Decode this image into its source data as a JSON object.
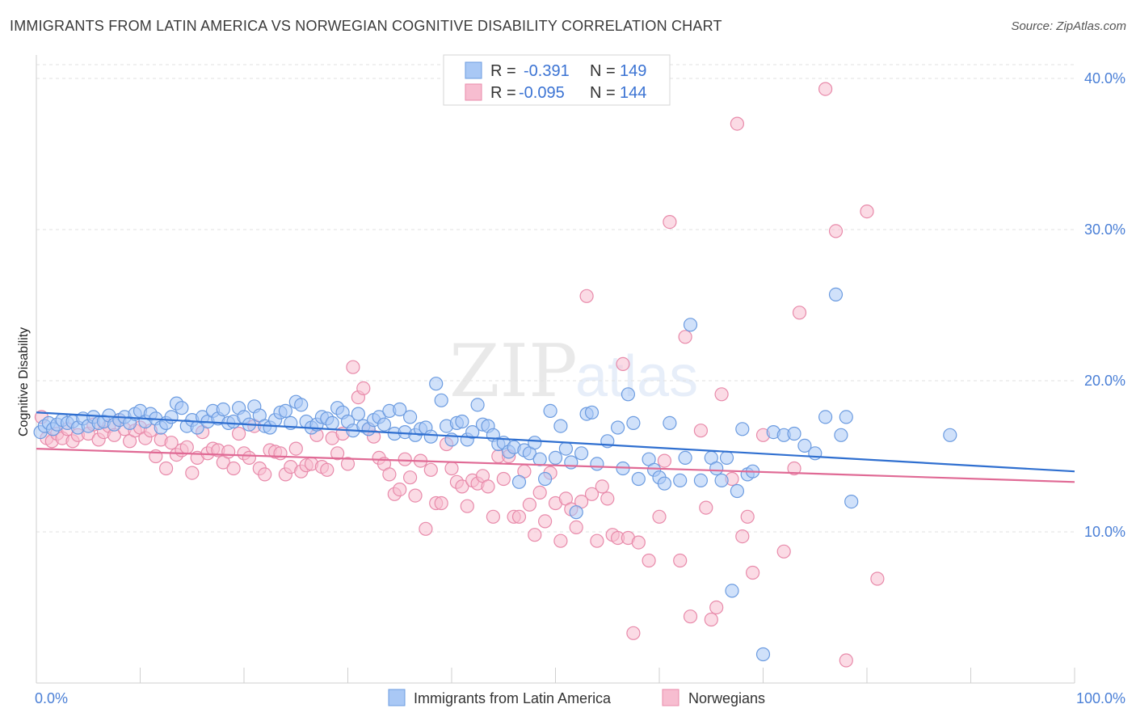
{
  "header": {
    "title": "IMMIGRANTS FROM LATIN AMERICA VS NORWEGIAN COGNITIVE DISABILITY CORRELATION CHART",
    "source": "Source: ZipAtlas.com"
  },
  "watermark": {
    "zip": "ZIP",
    "atlas": "atlas"
  },
  "legend": {
    "rows": [
      {
        "r_label": "R =",
        "r_value": "-0.391",
        "n_label": "N =",
        "n_value": "149"
      },
      {
        "r_label": "R =",
        "r_value": "-0.095",
        "n_label": "N =",
        "n_value": "144"
      }
    ]
  },
  "bottom_legend": {
    "series1": "Immigrants from Latin America",
    "series2": "Norwegians"
  },
  "colors": {
    "blue_fill": "#a9c8f5",
    "blue_stroke": "#6b9be0",
    "blue_line": "#2f6fd0",
    "pink_fill": "#f7bdd0",
    "pink_stroke": "#e88aaa",
    "pink_line": "#e06a95",
    "tick_text": "#4a7fd6",
    "grid": "#e2e2e2"
  },
  "chart_data": {
    "type": "scatter",
    "title": "IMMIGRANTS FROM LATIN AMERICA VS NORWEGIAN COGNITIVE DISABILITY CORRELATION CHART",
    "xlabel": "",
    "ylabel": "Cognitive Disability",
    "xlim": [
      0,
      100
    ],
    "ylim": [
      0,
      40
    ],
    "x_tick_labels": [
      "0.0%",
      "100.0%"
    ],
    "y_ticks": [
      10,
      20,
      30,
      40
    ],
    "y_tick_labels": [
      "10.0%",
      "20.0%",
      "30.0%",
      "40.0%"
    ],
    "grid": true,
    "legend_position": "top-center",
    "series": [
      {
        "name": "Immigrants from Latin America",
        "r": -0.391,
        "n": 149,
        "trend": [
          [
            0,
            17.9
          ],
          [
            100,
            14.0
          ]
        ],
        "points": [
          [
            0.4,
            16.6
          ],
          [
            0.8,
            17.0
          ],
          [
            1.2,
            17.2
          ],
          [
            1.6,
            16.8
          ],
          [
            2.0,
            17.1
          ],
          [
            2.5,
            17.4
          ],
          [
            3.0,
            17.2
          ],
          [
            3.5,
            17.3
          ],
          [
            4.0,
            16.9
          ],
          [
            4.5,
            17.5
          ],
          [
            5.0,
            17.0
          ],
          [
            5.5,
            17.6
          ],
          [
            6.0,
            17.2
          ],
          [
            6.5,
            17.3
          ],
          [
            7.0,
            17.7
          ],
          [
            7.5,
            17.1
          ],
          [
            8.0,
            17.4
          ],
          [
            8.5,
            17.6
          ],
          [
            9.0,
            17.2
          ],
          [
            9.5,
            17.8
          ],
          [
            10.0,
            18.0
          ],
          [
            10.5,
            17.3
          ],
          [
            11.0,
            17.8
          ],
          [
            11.5,
            17.5
          ],
          [
            12.0,
            16.9
          ],
          [
            12.5,
            17.2
          ],
          [
            13.0,
            17.6
          ],
          [
            13.5,
            18.5
          ],
          [
            14.0,
            18.2
          ],
          [
            14.5,
            17.0
          ],
          [
            15.0,
            17.4
          ],
          [
            15.5,
            16.9
          ],
          [
            16.0,
            17.6
          ],
          [
            16.5,
            17.3
          ],
          [
            17.0,
            18.0
          ],
          [
            17.5,
            17.5
          ],
          [
            18.0,
            18.1
          ],
          [
            18.5,
            17.2
          ],
          [
            19.0,
            17.3
          ],
          [
            19.5,
            18.2
          ],
          [
            20.0,
            17.6
          ],
          [
            20.5,
            17.1
          ],
          [
            21.0,
            18.3
          ],
          [
            21.5,
            17.7
          ],
          [
            22.0,
            17.0
          ],
          [
            22.5,
            16.9
          ],
          [
            23.0,
            17.4
          ],
          [
            23.5,
            17.9
          ],
          [
            24.0,
            18.0
          ],
          [
            24.5,
            17.2
          ],
          [
            25.0,
            18.6
          ],
          [
            25.5,
            18.4
          ],
          [
            26.0,
            17.3
          ],
          [
            26.5,
            16.9
          ],
          [
            27.0,
            17.1
          ],
          [
            27.5,
            17.6
          ],
          [
            28.0,
            17.5
          ],
          [
            28.5,
            17.2
          ],
          [
            29.0,
            18.2
          ],
          [
            29.5,
            17.9
          ],
          [
            30.0,
            17.3
          ],
          [
            30.5,
            16.7
          ],
          [
            31.0,
            17.8
          ],
          [
            31.5,
            17.0
          ],
          [
            32.0,
            16.8
          ],
          [
            32.5,
            17.4
          ],
          [
            33.0,
            17.6
          ],
          [
            33.5,
            17.1
          ],
          [
            34.0,
            18.0
          ],
          [
            34.5,
            16.5
          ],
          [
            35.0,
            18.1
          ],
          [
            35.5,
            16.6
          ],
          [
            36.0,
            17.6
          ],
          [
            36.5,
            16.4
          ],
          [
            37.0,
            16.8
          ],
          [
            37.5,
            16.9
          ],
          [
            38.0,
            16.3
          ],
          [
            38.5,
            19.8
          ],
          [
            39.0,
            18.7
          ],
          [
            39.5,
            17.0
          ],
          [
            40.0,
            16.1
          ],
          [
            40.5,
            17.2
          ],
          [
            41.0,
            17.3
          ],
          [
            41.5,
            16.1
          ],
          [
            42.0,
            16.6
          ],
          [
            42.5,
            18.4
          ],
          [
            43.0,
            17.1
          ],
          [
            43.5,
            17.0
          ],
          [
            44.0,
            16.4
          ],
          [
            44.5,
            15.8
          ],
          [
            45.0,
            15.9
          ],
          [
            45.5,
            15.3
          ],
          [
            46.0,
            15.6
          ],
          [
            46.5,
            13.3
          ],
          [
            47.0,
            15.4
          ],
          [
            47.5,
            15.2
          ],
          [
            48.0,
            15.9
          ],
          [
            48.5,
            14.8
          ],
          [
            49.0,
            13.5
          ],
          [
            49.5,
            18.0
          ],
          [
            50.0,
            14.9
          ],
          [
            50.5,
            17.0
          ],
          [
            51.0,
            15.5
          ],
          [
            51.5,
            14.6
          ],
          [
            52.0,
            11.3
          ],
          [
            52.5,
            15.2
          ],
          [
            53.0,
            17.8
          ],
          [
            53.5,
            17.9
          ],
          [
            54.0,
            14.5
          ],
          [
            55.0,
            16.0
          ],
          [
            56.0,
            16.9
          ],
          [
            56.5,
            14.2
          ],
          [
            57.0,
            19.1
          ],
          [
            57.5,
            17.2
          ],
          [
            58.0,
            13.5
          ],
          [
            59.0,
            14.8
          ],
          [
            59.5,
            14.1
          ],
          [
            60.0,
            13.6
          ],
          [
            60.5,
            13.2
          ],
          [
            61.0,
            17.2
          ],
          [
            62.0,
            13.4
          ],
          [
            62.5,
            14.9
          ],
          [
            63.0,
            23.7
          ],
          [
            64.0,
            13.4
          ],
          [
            65.0,
            14.9
          ],
          [
            65.5,
            14.2
          ],
          [
            66.0,
            13.4
          ],
          [
            66.5,
            14.9
          ],
          [
            67.0,
            6.1
          ],
          [
            67.5,
            12.7
          ],
          [
            68.0,
            16.8
          ],
          [
            68.5,
            13.8
          ],
          [
            69.0,
            14.0
          ],
          [
            70.0,
            1.9
          ],
          [
            71.0,
            16.6
          ],
          [
            72.0,
            16.4
          ],
          [
            73.0,
            16.5
          ],
          [
            74.0,
            15.7
          ],
          [
            75.0,
            15.2
          ],
          [
            76.0,
            17.6
          ],
          [
            77.0,
            25.7
          ],
          [
            77.5,
            16.4
          ],
          [
            78.0,
            17.6
          ],
          [
            78.5,
            12.0
          ],
          [
            88.0,
            16.4
          ]
        ]
      },
      {
        "name": "Norwegians",
        "r": -0.095,
        "n": 144,
        "trend": [
          [
            0,
            15.5
          ],
          [
            100,
            13.3
          ]
        ],
        "points": [
          [
            0.5,
            17.6
          ],
          [
            1.0,
            16.2
          ],
          [
            1.5,
            16.0
          ],
          [
            2.0,
            16.5
          ],
          [
            2.5,
            16.2
          ],
          [
            3.0,
            16.8
          ],
          [
            3.5,
            16.0
          ],
          [
            4.0,
            16.4
          ],
          [
            5.0,
            16.5
          ],
          [
            5.5,
            17.1
          ],
          [
            6.0,
            16.1
          ],
          [
            6.5,
            16.6
          ],
          [
            7.0,
            17.0
          ],
          [
            7.5,
            16.4
          ],
          [
            8.0,
            17.4
          ],
          [
            8.5,
            16.8
          ],
          [
            9.0,
            16.0
          ],
          [
            9.5,
            16.7
          ],
          [
            10.0,
            16.9
          ],
          [
            10.5,
            16.2
          ],
          [
            11.0,
            16.7
          ],
          [
            11.5,
            15.0
          ],
          [
            12.0,
            16.1
          ],
          [
            12.5,
            14.2
          ],
          [
            13.0,
            15.9
          ],
          [
            13.5,
            15.1
          ],
          [
            14.0,
            15.4
          ],
          [
            14.5,
            15.6
          ],
          [
            15.0,
            13.9
          ],
          [
            15.5,
            14.9
          ],
          [
            16.0,
            16.6
          ],
          [
            16.5,
            15.2
          ],
          [
            17.0,
            15.5
          ],
          [
            17.5,
            15.4
          ],
          [
            18.0,
            14.6
          ],
          [
            18.5,
            15.3
          ],
          [
            19.0,
            14.2
          ],
          [
            19.5,
            16.5
          ],
          [
            20.0,
            15.2
          ],
          [
            20.5,
            14.9
          ],
          [
            21.0,
            17.0
          ],
          [
            21.5,
            14.2
          ],
          [
            22.0,
            13.8
          ],
          [
            22.5,
            15.4
          ],
          [
            23.0,
            15.3
          ],
          [
            23.5,
            15.2
          ],
          [
            24.0,
            13.8
          ],
          [
            24.5,
            14.3
          ],
          [
            25.0,
            15.5
          ],
          [
            25.5,
            14.0
          ],
          [
            26.0,
            14.4
          ],
          [
            26.5,
            14.5
          ],
          [
            27.0,
            16.4
          ],
          [
            27.5,
            14.3
          ],
          [
            28.0,
            14.1
          ],
          [
            28.5,
            16.2
          ],
          [
            29.0,
            15.2
          ],
          [
            29.5,
            16.5
          ],
          [
            30.0,
            14.5
          ],
          [
            30.5,
            20.9
          ],
          [
            31.0,
            18.9
          ],
          [
            31.5,
            19.5
          ],
          [
            32.0,
            16.8
          ],
          [
            32.5,
            16.3
          ],
          [
            33.0,
            14.9
          ],
          [
            33.5,
            14.5
          ],
          [
            34.0,
            13.8
          ],
          [
            34.5,
            12.5
          ],
          [
            35.0,
            12.8
          ],
          [
            35.5,
            14.8
          ],
          [
            36.0,
            13.6
          ],
          [
            36.5,
            12.4
          ],
          [
            37.0,
            14.7
          ],
          [
            37.5,
            10.2
          ],
          [
            38.0,
            14.1
          ],
          [
            38.5,
            11.9
          ],
          [
            39.0,
            11.9
          ],
          [
            39.5,
            15.8
          ],
          [
            40.0,
            14.2
          ],
          [
            40.5,
            13.3
          ],
          [
            41.0,
            13.0
          ],
          [
            41.5,
            11.7
          ],
          [
            42.0,
            13.4
          ],
          [
            42.5,
            13.2
          ],
          [
            43.0,
            13.7
          ],
          [
            43.5,
            13.0
          ],
          [
            44.0,
            11.0
          ],
          [
            44.5,
            15.0
          ],
          [
            45.0,
            13.5
          ],
          [
            45.5,
            15.0
          ],
          [
            46.0,
            11.0
          ],
          [
            46.5,
            11.0
          ],
          [
            47.0,
            14.0
          ],
          [
            47.5,
            11.8
          ],
          [
            48.0,
            9.8
          ],
          [
            48.5,
            12.6
          ],
          [
            49.0,
            10.7
          ],
          [
            49.5,
            13.9
          ],
          [
            50.0,
            11.9
          ],
          [
            50.5,
            9.4
          ],
          [
            51.0,
            12.2
          ],
          [
            51.5,
            11.5
          ],
          [
            52.0,
            10.3
          ],
          [
            52.5,
            12.0
          ],
          [
            53.0,
            25.6
          ],
          [
            53.5,
            12.5
          ],
          [
            54.0,
            9.4
          ],
          [
            54.5,
            13.0
          ],
          [
            55.0,
            12.2
          ],
          [
            55.5,
            9.8
          ],
          [
            56.0,
            9.6
          ],
          [
            56.5,
            21.1
          ],
          [
            57.0,
            9.6
          ],
          [
            57.5,
            3.3
          ],
          [
            58.0,
            9.3
          ],
          [
            59.0,
            8.1
          ],
          [
            60.0,
            11.0
          ],
          [
            60.5,
            14.7
          ],
          [
            61.0,
            30.5
          ],
          [
            62.0,
            8.1
          ],
          [
            62.5,
            22.9
          ],
          [
            63.0,
            4.4
          ],
          [
            64.0,
            16.7
          ],
          [
            64.5,
            11.6
          ],
          [
            65.0,
            4.2
          ],
          [
            65.5,
            5.0
          ],
          [
            66.0,
            19.1
          ],
          [
            67.0,
            13.5
          ],
          [
            67.5,
            37.0
          ],
          [
            68.0,
            9.7
          ],
          [
            68.5,
            11.0
          ],
          [
            69.0,
            7.3
          ],
          [
            70.0,
            16.4
          ],
          [
            72.0,
            8.7
          ],
          [
            73.0,
            14.2
          ],
          [
            73.5,
            24.5
          ],
          [
            76.0,
            39.3
          ],
          [
            77.0,
            29.9
          ],
          [
            78.0,
            1.5
          ],
          [
            80.0,
            31.2
          ],
          [
            81.0,
            6.9
          ]
        ]
      }
    ]
  }
}
